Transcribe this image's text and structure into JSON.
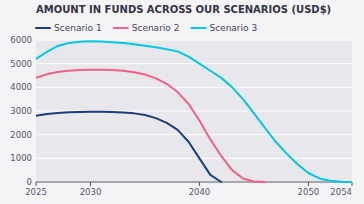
{
  "chart_data": {
    "type": "line",
    "title": "AMOUNT IN FUNDS ACROSS OUR SCENARIOS (USD$)",
    "series": [
      {
        "name": "Scenario 1",
        "color": "#1b3f7a",
        "x": [
          2025,
          2026,
          2027,
          2028,
          2029,
          2030,
          2031,
          2032,
          2033,
          2034,
          2035,
          2036,
          2037,
          2038,
          2039,
          2040,
          2041,
          2042
        ],
        "values": [
          2800,
          2870,
          2920,
          2950,
          2960,
          2970,
          2970,
          2960,
          2940,
          2900,
          2830,
          2700,
          2500,
          2200,
          1700,
          1000,
          300,
          0
        ]
      },
      {
        "name": "Scenario 2",
        "color": "#f0608a",
        "x": [
          2025,
          2026,
          2027,
          2028,
          2029,
          2030,
          2031,
          2032,
          2033,
          2034,
          2035,
          2036,
          2037,
          2038,
          2039,
          2040,
          2041,
          2042,
          2043,
          2044,
          2045,
          2046
        ],
        "values": [
          4400,
          4550,
          4650,
          4700,
          4730,
          4740,
          4740,
          4730,
          4700,
          4640,
          4540,
          4380,
          4150,
          3800,
          3300,
          2600,
          1800,
          1100,
          500,
          150,
          20,
          0
        ]
      },
      {
        "name": "Scenario 3",
        "color": "#00c8e0",
        "x": [
          2025,
          2026,
          2027,
          2028,
          2029,
          2030,
          2031,
          2032,
          2033,
          2034,
          2035,
          2036,
          2037,
          2038,
          2039,
          2040,
          2041,
          2042,
          2043,
          2044,
          2045,
          2046,
          2047,
          2048,
          2049,
          2050,
          2051,
          2052,
          2053,
          2054
        ],
        "values": [
          5200,
          5500,
          5750,
          5870,
          5930,
          5950,
          5940,
          5910,
          5870,
          5820,
          5760,
          5690,
          5610,
          5520,
          5300,
          5000,
          4700,
          4400,
          4000,
          3500,
          2900,
          2300,
          1700,
          1200,
          750,
          380,
          150,
          50,
          10,
          0
        ]
      }
    ],
    "xlim": [
      2025,
      2054
    ],
    "xticks": [
      2025,
      2030,
      2040,
      2050,
      2054
    ],
    "ylim": [
      0,
      6000
    ],
    "yticks": [
      0,
      1000,
      2000,
      3000,
      4000,
      5000,
      6000
    ],
    "grid": true,
    "legend": "upper left"
  }
}
